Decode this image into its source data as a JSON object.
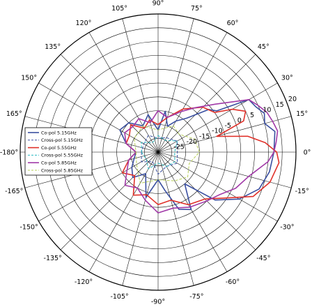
{
  "chart_data": {
    "type": "polar-line",
    "title": "",
    "angular_axis": {
      "unit": "degrees",
      "zero_direction": "east",
      "direction": "counterclockwise",
      "tick_labels": [
        {
          "angle": 0,
          "label": "0°"
        },
        {
          "angle": 15,
          "label": "15°"
        },
        {
          "angle": 30,
          "label": "30°"
        },
        {
          "angle": 45,
          "label": "45°"
        },
        {
          "angle": 60,
          "label": "60°"
        },
        {
          "angle": 75,
          "label": "75°"
        },
        {
          "angle": 90,
          "label": "90°"
        },
        {
          "angle": 105,
          "label": "105°"
        },
        {
          "angle": 120,
          "label": "120°"
        },
        {
          "angle": 135,
          "label": "135°"
        },
        {
          "angle": 150,
          "label": "150°"
        },
        {
          "angle": 165,
          "label": "165°"
        },
        {
          "angle": 180,
          "label": "-180°"
        },
        {
          "angle": -165,
          "label": "-165°"
        },
        {
          "angle": -150,
          "label": "-150°"
        },
        {
          "angle": -135,
          "label": "-135°"
        },
        {
          "angle": -120,
          "label": "-120°"
        },
        {
          "angle": -105,
          "label": "-105°"
        },
        {
          "angle": -90,
          "label": "-90°"
        },
        {
          "angle": -75,
          "label": "-75°"
        },
        {
          "angle": -60,
          "label": "-60°"
        },
        {
          "angle": -45,
          "label": "-45°"
        },
        {
          "angle": -30,
          "label": "-30°"
        },
        {
          "angle": -15,
          "label": "-15°"
        }
      ]
    },
    "radial_axis": {
      "rlim": [
        -30,
        20
      ],
      "ticks": [
        -25,
        -20,
        -15,
        -10,
        -5,
        0,
        5,
        10,
        15,
        20
      ],
      "tick_labels": [
        "-25",
        "-20",
        "-15",
        "-10",
        "-5",
        "0",
        "5",
        "10",
        "15",
        "20"
      ],
      "label_angle": 22.5
    },
    "grid": true,
    "legend": {
      "placement": "center-left"
    },
    "series": [
      {
        "name": "Co-pol 5.15GHz",
        "color": "#3a4fa0",
        "style": "solid",
        "theta": [
          -180,
          -165,
          -150,
          -135,
          -120,
          -105,
          -90,
          -80,
          -70,
          -60,
          -50,
          -40,
          -30,
          -20,
          -10,
          0,
          10,
          15,
          20,
          25,
          30,
          35,
          40,
          50,
          60,
          70,
          80,
          90,
          105,
          120,
          135,
          150,
          165,
          180
        ],
        "r": [
          -22,
          -21,
          -19,
          -17,
          -21,
          -13,
          -20,
          -16,
          -8,
          -6,
          -15,
          -3,
          4,
          9,
          11,
          12,
          13,
          10,
          11,
          9,
          8,
          -4,
          -6,
          -14,
          -17,
          -20,
          -15,
          -22,
          -16,
          -19,
          -15,
          -14,
          -18,
          -22
        ]
      },
      {
        "name": "Cross-pol 5.15GHz",
        "color": "#3a4fa0",
        "style": "dashed",
        "theta": [
          -180,
          -150,
          -120,
          -90,
          -60,
          -30,
          0,
          30,
          60,
          90,
          120,
          150,
          180
        ],
        "r": [
          -24,
          -23,
          -26,
          -22,
          -24,
          -22,
          -23,
          -22,
          -24,
          -25,
          -23,
          -24,
          -24
        ]
      },
      {
        "name": "Co-pol 5.55GHz",
        "color": "#e0312a",
        "style": "solid",
        "theta": [
          -180,
          -165,
          -150,
          -135,
          -120,
          -105,
          -90,
          -75,
          -60,
          -45,
          -35,
          -25,
          -15,
          -5,
          0,
          5,
          10,
          15,
          20,
          25,
          30,
          35,
          45,
          60,
          75,
          90,
          105,
          120,
          135,
          150,
          165,
          180
        ],
        "r": [
          -22,
          -19,
          -15,
          -18,
          -12,
          -14,
          -11,
          -12,
          -8,
          -6,
          -1,
          8,
          12,
          14,
          13,
          9,
          3,
          -8,
          3,
          5,
          1,
          -5,
          -7,
          -12,
          -17,
          -20,
          -18,
          -20,
          -16,
          -18,
          -18,
          -22
        ]
      },
      {
        "name": "Cross-pol 5.55GHz",
        "color": "#28b8c0",
        "style": "dashed",
        "theta": [
          -180,
          -150,
          -120,
          -90,
          -60,
          -30,
          0,
          30,
          60,
          90,
          120,
          150,
          180
        ],
        "r": [
          -24,
          -25,
          -23,
          -26,
          -24,
          -23,
          -24,
          -22,
          -25,
          -24,
          -26,
          -23,
          -24
        ]
      },
      {
        "name": "Co-pol 5.85GHz",
        "color": "#a13aa8",
        "style": "solid",
        "theta": [
          -180,
          -165,
          -150,
          -135,
          -120,
          -105,
          -90,
          -75,
          -60,
          -45,
          -35,
          -25,
          -15,
          -5,
          0,
          5,
          10,
          15,
          20,
          25,
          30,
          40,
          50,
          60,
          75,
          90,
          105,
          120,
          135,
          150,
          165,
          180
        ],
        "r": [
          -22,
          -19,
          -17,
          -13,
          -15,
          -12,
          -8,
          -9,
          -7,
          -5,
          -3,
          1,
          4,
          10,
          12,
          13,
          14,
          13,
          12,
          10,
          8,
          -3,
          -9,
          -13,
          -17,
          -15,
          -19,
          -16,
          -17,
          -16,
          -18,
          -22
        ]
      },
      {
        "name": "Cross-pol 5.85GHz",
        "color": "#b7cf5a",
        "style": "dashed",
        "theta": [
          -180,
          -150,
          -120,
          -90,
          -60,
          -40,
          -20,
          0,
          20,
          40,
          60,
          90,
          120,
          150,
          180
        ],
        "r": [
          -22,
          -21,
          -17,
          -20,
          -18,
          -16,
          -18,
          -15,
          -16,
          -20,
          -19,
          -22,
          -19,
          -20,
          -22
        ]
      }
    ]
  }
}
